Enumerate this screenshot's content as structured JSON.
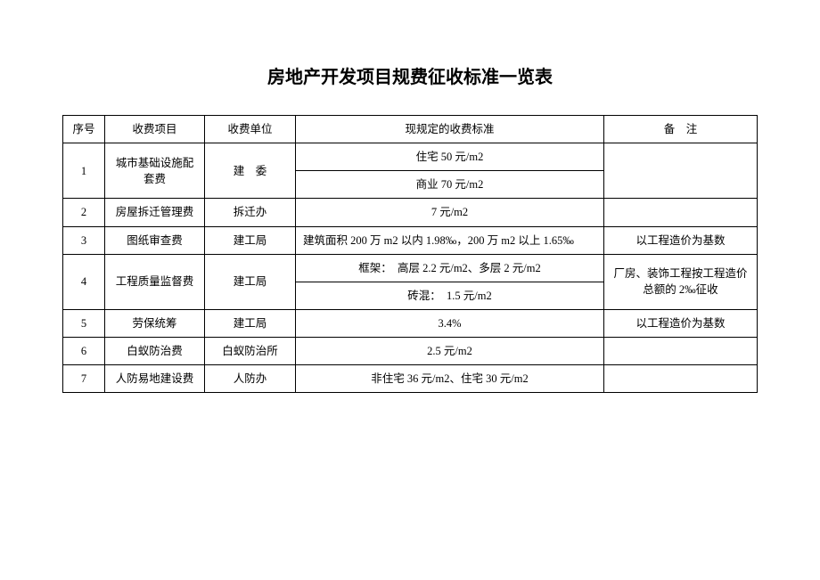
{
  "title": "房地产开发项目规费征收标准一览表",
  "headers": {
    "seq": "序号",
    "item": "收费项目",
    "unit": "收费单位",
    "standard": "现规定的收费标准",
    "remark": "备　注"
  },
  "rows": {
    "r1": {
      "seq": "1",
      "item": "城市基础设施配套费",
      "unit": "建　委",
      "standard_a": "住宅 50 元/m2",
      "standard_b": "商业 70 元/m2",
      "remark": ""
    },
    "r2": {
      "seq": "2",
      "item": "房屋拆迁管理费",
      "unit": "拆迁办",
      "standard": "7 元/m2",
      "remark": ""
    },
    "r3": {
      "seq": "3",
      "item": "图纸审查费",
      "unit": "建工局",
      "standard": "建筑面积 200 万 m2 以内 1.98‰，200 万 m2 以上 1.65‰",
      "remark": "以工程造价为基数"
    },
    "r4": {
      "seq": "4",
      "item": "工程质量监督费",
      "unit": "建工局",
      "standard_a": "框架：　高层 2.2 元/m2、多层 2 元/m2",
      "standard_b": "砖混：　1.5 元/m2",
      "remark": "厂房、装饰工程按工程造价总额的 2‰征收"
    },
    "r5": {
      "seq": "5",
      "item": "劳保统筹",
      "unit": "建工局",
      "standard": "3.4%",
      "remark": "以工程造价为基数"
    },
    "r6": {
      "seq": "6",
      "item": "白蚁防治费",
      "unit": "白蚁防治所",
      "standard": "2.5 元/m2",
      "remark": ""
    },
    "r7": {
      "seq": "7",
      "item": "人防易地建设费",
      "unit": "人防办",
      "standard": "非住宅 36 元/m2、住宅 30 元/m2",
      "remark": ""
    }
  }
}
